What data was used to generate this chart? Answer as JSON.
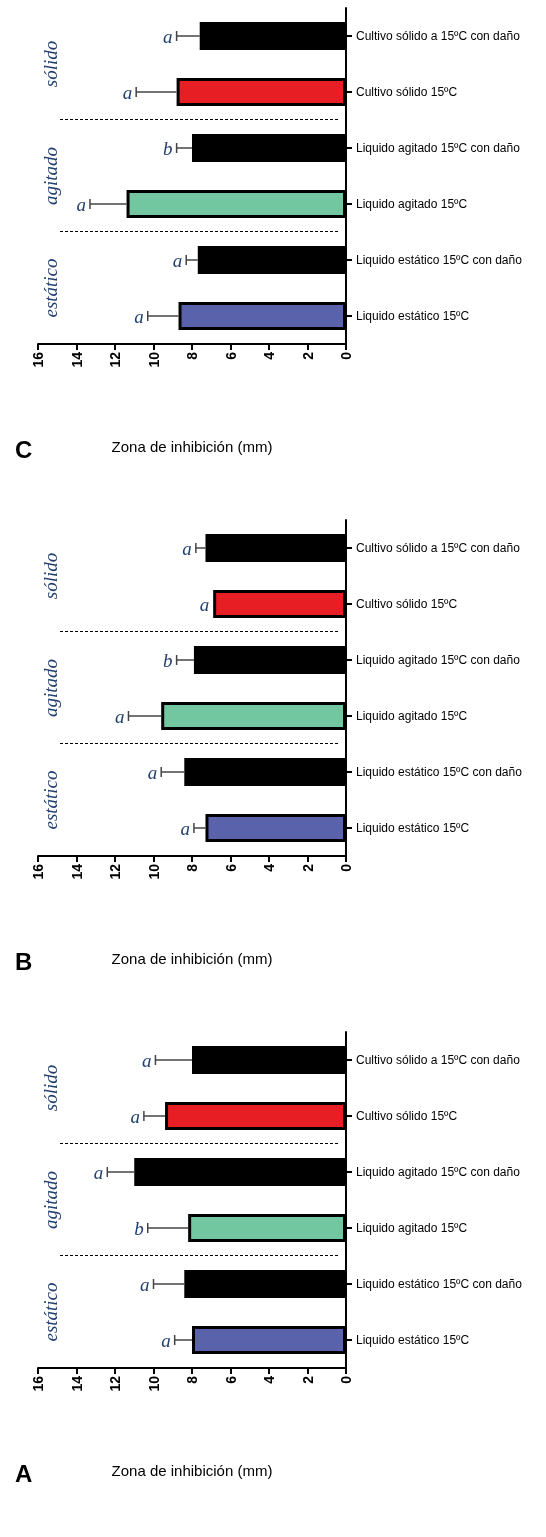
{
  "chart_data": [
    {
      "type": "bar",
      "orientation": "horizontal",
      "title": "A",
      "xlabel": "Zona de inhibición (mm)",
      "categories": [
        "Cultivo sólido a 15ºC con daño",
        "Cultivo sólido 15ºC",
        "Liquido agitado 15ºC con daño",
        "Liquido agitado 15ºC",
        "Liquido estático 15ºC con daño",
        "Liquido estático 15ºC"
      ],
      "values": [
        8.0,
        9.4,
        11.0,
        8.2,
        8.4,
        8.0
      ],
      "colors": [
        "#000000",
        "#e81e25",
        "#000000",
        "#72c7a0",
        "#000000",
        "#5a62ab"
      ],
      "errors": [
        [
          8.0,
          9.9
        ],
        [
          9.4,
          10.5
        ],
        [
          11.0,
          12.4
        ],
        [
          8.2,
          10.3
        ],
        [
          8.4,
          10.0
        ],
        [
          8.0,
          8.9
        ]
      ],
      "xlim": [
        16,
        0
      ],
      "xticks": [
        0,
        2,
        4,
        6,
        8,
        10,
        12,
        14,
        16
      ],
      "annotations": [
        "sólido",
        "agitado",
        "estático",
        {
          "text": "a",
          "x": 9.9,
          "y": "Cultivo sólido a 15ºC con daño"
        },
        {
          "text": "a",
          "x": 10.5,
          "y": "Cultivo sólido 15ºC"
        },
        {
          "text": "a",
          "x": 12.4,
          "y": "Liquido agitado 15ºC con daño"
        },
        {
          "text": "b",
          "x": 10.3,
          "y": "Liquido agitado 15ºC"
        },
        {
          "text": "a",
          "x": 10.0,
          "y": "Liquido estático 15ºC con daño"
        },
        {
          "text": "a",
          "x": 8.9,
          "y": "Liquido estático 15ºC"
        }
      ]
    },
    {
      "type": "bar",
      "orientation": "horizontal",
      "title": "B",
      "xlabel": "Zona de inhibición (mm)",
      "categories": [
        "Cultivo sólido a 15ºC con daño",
        "Cultivo sólido 15ºC",
        "Liquido agitado 15ºC con daño",
        "Liquido agitado 15ºC",
        "Liquido estático 15ºC con daño",
        "Liquido estático 15ºC"
      ],
      "values": [
        7.3,
        6.9,
        7.9,
        9.6,
        8.4,
        7.3
      ],
      "colors": [
        "#000000",
        "#e81e25",
        "#000000",
        "#72c7a0",
        "#000000",
        "#5a62ab"
      ],
      "errors": [
        [
          7.3,
          7.8
        ],
        null,
        [
          7.9,
          8.8
        ],
        [
          9.6,
          11.3
        ],
        [
          8.4,
          9.6
        ],
        [
          7.3,
          7.9
        ]
      ],
      "xlim": [
        16,
        0
      ],
      "xticks": [
        0,
        2,
        4,
        6,
        8,
        10,
        12,
        14,
        16
      ],
      "annotations": [
        "sólido",
        "agitado",
        "estático",
        {
          "text": "a",
          "x": 7.8,
          "y": "Cultivo sólido a 15ºC con daño"
        },
        {
          "text": "a",
          "x": 6.9,
          "y": "Cultivo sólido 15ºC"
        },
        {
          "text": "b",
          "x": 8.8,
          "y": "Liquido agitado 15ºC con daño"
        },
        {
          "text": "a",
          "x": 11.3,
          "y": "Liquido agitado 15ºC"
        },
        {
          "text": "a",
          "x": 9.6,
          "y": "Liquido estático 15ºC con daño"
        },
        {
          "text": "a",
          "x": 7.9,
          "y": "Liquido estático 15ºC"
        }
      ]
    },
    {
      "type": "bar",
      "orientation": "horizontal",
      "title": "C",
      "xlabel": "Zona de inhibición (mm)",
      "categories": [
        "Cultivo sólido a 15ºC con daño",
        "Cultivo sólido 15ºC",
        "Liquido agitado 15ºC con daño",
        "Liquido agitado 15ºC",
        "Liquido estático 15ºC con daño",
        "Liquido estático 15ºC"
      ],
      "values": [
        7.6,
        8.8,
        8.0,
        11.4,
        7.7,
        8.7
      ],
      "colors": [
        "#000000",
        "#e81e25",
        "#000000",
        "#72c7a0",
        "#000000",
        "#5a62ab"
      ],
      "errors": [
        [
          7.6,
          8.8
        ],
        [
          8.8,
          10.9
        ],
        [
          8.0,
          8.8
        ],
        [
          11.4,
          13.3
        ],
        [
          7.7,
          8.3
        ],
        [
          8.7,
          10.3
        ]
      ],
      "xlim": [
        16,
        0
      ],
      "xticks": [
        0,
        2,
        4,
        6,
        8,
        10,
        12,
        14,
        16
      ],
      "annotations": [
        "sólido",
        "agitado",
        "estático",
        {
          "text": "a",
          "x": 8.8,
          "y": "Cultivo sólido a 15ºC con daño"
        },
        {
          "text": "a",
          "x": 10.9,
          "y": "Cultivo sólido 15ºC"
        },
        {
          "text": "b",
          "x": 8.8,
          "y": "Liquido agitado 15ºC con daño"
        },
        {
          "text": "a",
          "x": 13.3,
          "y": "Liquido agitado 15ºC"
        },
        {
          "text": "a",
          "x": 8.3,
          "y": "Liquido estático 15ºC con daño"
        },
        {
          "text": "a",
          "x": 10.3,
          "y": "Liquido estático 15ºC"
        }
      ]
    }
  ]
}
